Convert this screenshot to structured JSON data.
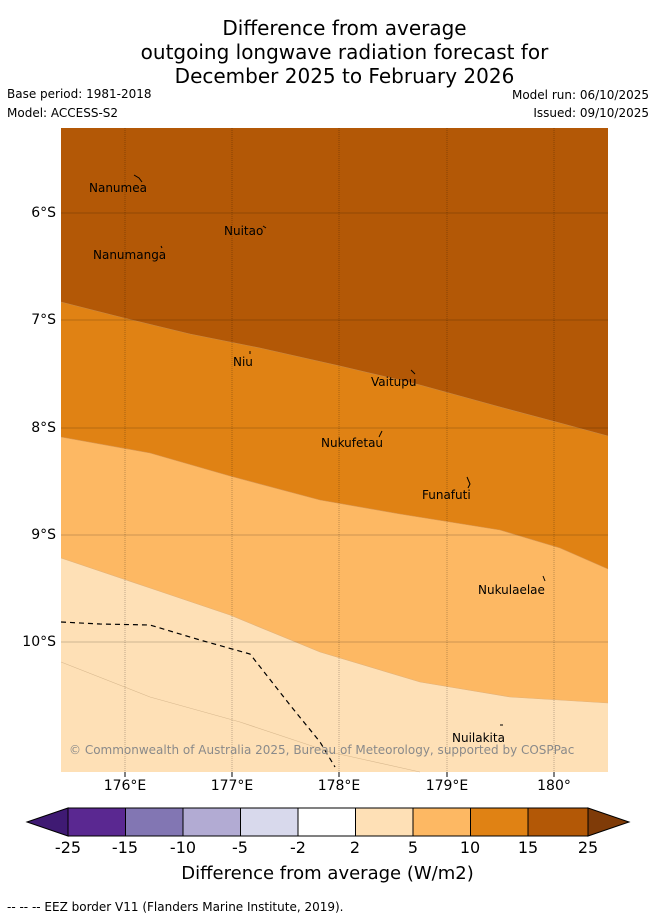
{
  "title": {
    "line1": "Difference from average",
    "line2": "outgoing longwave radiation forecast for",
    "line3": "December 2025 to February 2026"
  },
  "meta": {
    "base_period": "Base period: 1981-2018",
    "model": "Model: ACCESS-S2",
    "model_run": "Model run: 06/10/2025",
    "issued": "Issued: 09/10/2025"
  },
  "axes": {
    "lat_labels": [
      "6°S",
      "7°S",
      "8°S",
      "9°S",
      "10°S"
    ],
    "lon_labels": [
      "176°E",
      "177°E",
      "178°E",
      "179°E",
      "180°"
    ]
  },
  "places": [
    {
      "name": "Nanumea"
    },
    {
      "name": "Nuitao"
    },
    {
      "name": "Nanumanga"
    },
    {
      "name": "Niu"
    },
    {
      "name": "Vaitupu"
    },
    {
      "name": "Nukufetau"
    },
    {
      "name": "Funafuti"
    },
    {
      "name": "Nukulaelae"
    },
    {
      "name": "Nuilakita"
    }
  ],
  "copyright": "© Commonwealth of Australia 2025, Bureau of Meteorology, supported by COSPPac",
  "colorbar": {
    "ticks": [
      "-25",
      "-15",
      "-10",
      "-5",
      "-2",
      "2",
      "5",
      "10",
      "15",
      "25"
    ],
    "colors": [
      "#3f1a73",
      "#5a2891",
      "#8276b3",
      "#b2abd3",
      "#d8d9ec",
      "#ffffff",
      "#fee0b6",
      "#fdb863",
      "#e08214",
      "#b35806",
      "#7f3b08"
    ],
    "title": "Difference from average (W/m2)"
  },
  "contour_colors": {
    "band_25": "#b35806",
    "band_15": "#e08214",
    "band_10": "#fdb863",
    "band_5": "#fee0b6"
  },
  "footer": "-- -- -- EEZ border V11 (Flanders Marine Institute, 2019)."
}
